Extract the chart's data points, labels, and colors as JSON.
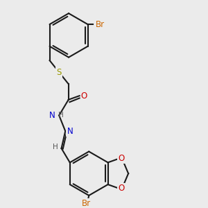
{
  "bg_color": "#ebebeb",
  "bond_color": "#1a1a1a",
  "bond_lw": 1.5,
  "colors": {
    "Br": "#cc6600",
    "S": "#999900",
    "O": "#cc0000",
    "N": "#0000cc",
    "H": "#555555",
    "C": "#1a1a1a"
  },
  "font_size": 8.5
}
